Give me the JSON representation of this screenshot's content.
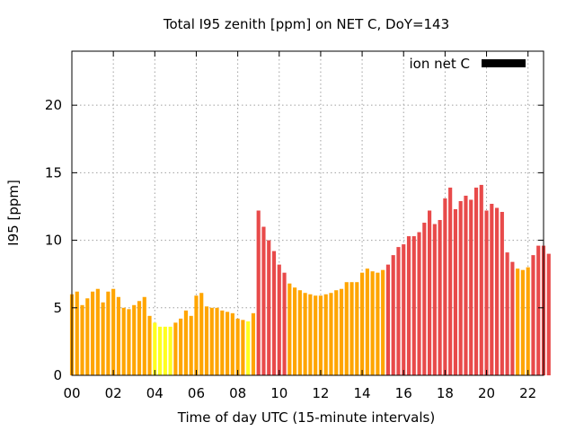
{
  "chart_data": {
    "type": "bar",
    "title": "Total I95 zenith [ppm] on NET C, DoY=143",
    "xlabel": "Time of day UTC (15-minute intervals)",
    "ylabel": "I95 [ppm]",
    "xlim": [
      0,
      22.75
    ],
    "ylim": [
      0,
      24
    ],
    "x_ticks": [
      0,
      2,
      4,
      6,
      8,
      10,
      12,
      14,
      16,
      18,
      20,
      22
    ],
    "x_tick_labels": [
      "00",
      "02",
      "04",
      "06",
      "08",
      "10",
      "12",
      "14",
      "16",
      "18",
      "20",
      "22"
    ],
    "y_ticks": [
      0,
      5,
      10,
      15,
      20
    ],
    "grid": true,
    "legend": {
      "label": "ion net C",
      "placement": "top-right",
      "swatch_color": "#000000"
    },
    "bin_hours": 0.25,
    "colors": {
      "yellow": "#ffff1e",
      "orange": "#ffa500",
      "red": "#e84a4a"
    },
    "series": [
      {
        "values": [
          6.0,
          6.2,
          5.2,
          5.7,
          6.2,
          6.4,
          5.4,
          6.2,
          6.4,
          5.8,
          5.0,
          4.9,
          5.2,
          5.5,
          5.8,
          4.4,
          3.9,
          3.6,
          3.6,
          3.6,
          3.9,
          4.2,
          4.8,
          4.4,
          5.9,
          6.1,
          5.1,
          5.0,
          5.0,
          4.8,
          4.7,
          4.6,
          4.2,
          4.1,
          4.0,
          4.6,
          12.2,
          11.0,
          10.0,
          9.2,
          8.2,
          7.6,
          6.8,
          6.5,
          6.3,
          6.1,
          6.0,
          5.9,
          5.9,
          6.0,
          6.1,
          6.3,
          6.4,
          6.9,
          6.9,
          6.9,
          7.6,
          7.9,
          7.7,
          7.6,
          7.8,
          8.2,
          8.9,
          9.5,
          9.7,
          10.3,
          10.3,
          10.6,
          11.3,
          12.2,
          11.2,
          11.5,
          13.1,
          13.9,
          12.3,
          12.9,
          13.3,
          13.0,
          13.9,
          14.1,
          12.2,
          12.7,
          12.4,
          12.1,
          9.1,
          8.4,
          7.9,
          7.8,
          8.0,
          8.9,
          9.6,
          9.6,
          9.0
        ],
        "colors": [
          "orange",
          "orange",
          "orange",
          "orange",
          "orange",
          "orange",
          "orange",
          "orange",
          "orange",
          "orange",
          "orange",
          "orange",
          "orange",
          "orange",
          "orange",
          "orange",
          "yellow",
          "yellow",
          "yellow",
          "yellow",
          "orange",
          "orange",
          "orange",
          "orange",
          "orange",
          "orange",
          "orange",
          "orange",
          "orange",
          "orange",
          "orange",
          "orange",
          "orange",
          "orange",
          "yellow",
          "orange",
          "red",
          "red",
          "red",
          "red",
          "red",
          "red",
          "orange",
          "orange",
          "orange",
          "orange",
          "orange",
          "orange",
          "orange",
          "orange",
          "orange",
          "orange",
          "orange",
          "orange",
          "orange",
          "orange",
          "orange",
          "orange",
          "orange",
          "orange",
          "orange",
          "red",
          "red",
          "red",
          "red",
          "red",
          "red",
          "red",
          "red",
          "red",
          "red",
          "red",
          "red",
          "red",
          "red",
          "red",
          "red",
          "red",
          "red",
          "red",
          "red",
          "red",
          "red",
          "red",
          "red",
          "red",
          "orange",
          "orange",
          "orange",
          "red",
          "red",
          "red",
          "red"
        ]
      }
    ]
  }
}
